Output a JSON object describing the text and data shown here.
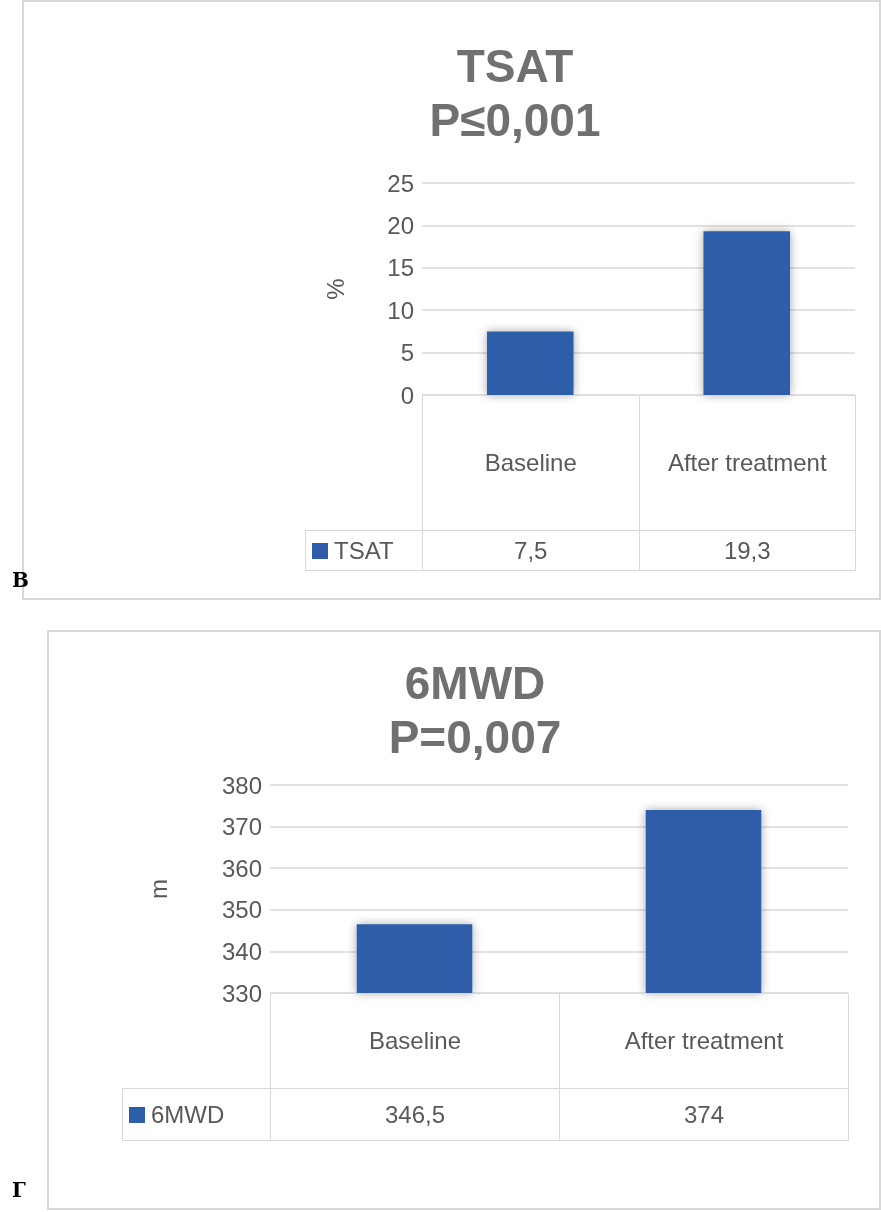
{
  "chart_data": [
    {
      "type": "bar",
      "title": "TSAT",
      "subtitle": "P≤0,001",
      "ylabel": "%",
      "categories": [
        "Baseline",
        "After treatment"
      ],
      "series": [
        {
          "name": "TSAT",
          "color": "#2e5daa",
          "values": [
            7.5,
            19.3
          ],
          "value_labels": [
            "7,5",
            "19,3"
          ]
        }
      ],
      "ylim": [
        0,
        25
      ],
      "yticks": [
        0,
        5,
        10,
        15,
        20,
        25
      ],
      "grid": "y",
      "legend": "bottom",
      "annotations": [
        "В"
      ]
    },
    {
      "type": "bar",
      "title": "6MWD",
      "subtitle": "P=0,007",
      "ylabel": "m",
      "categories": [
        "Baseline",
        "After treatment"
      ],
      "series": [
        {
          "name": "6MWD",
          "color": "#2e5daa",
          "values": [
            346.5,
            374
          ],
          "value_labels": [
            "346,5",
            "374"
          ]
        }
      ],
      "ylim": [
        330,
        380
      ],
      "yticks": [
        330,
        340,
        350,
        360,
        370,
        380
      ],
      "grid": "y",
      "legend": "bottom",
      "annotations": [
        "Г"
      ]
    }
  ]
}
